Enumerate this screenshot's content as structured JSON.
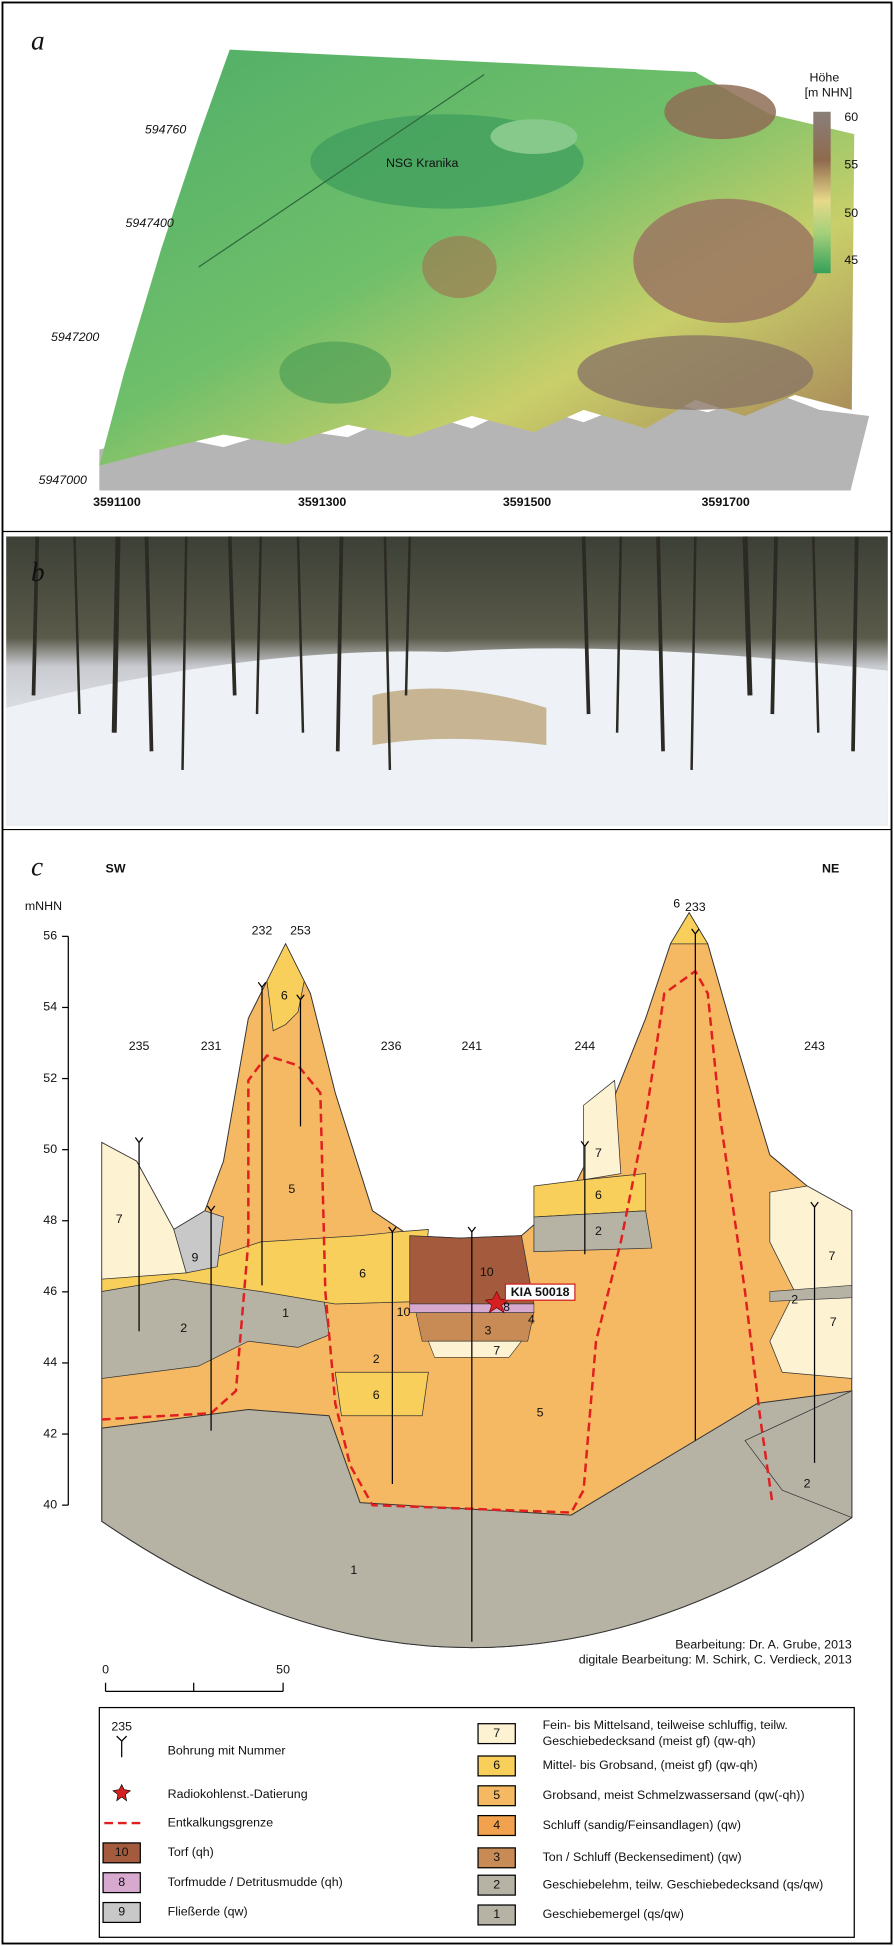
{
  "panel_a": {
    "label": "a",
    "place_label": "NSG Kranika",
    "colorbar": {
      "title": "Höhe",
      "unit": "[m NHN]",
      "ticks": [
        60,
        55,
        50,
        45
      ]
    },
    "northing_labels": [
      "594760",
      "5947400",
      "5947200",
      "5947000"
    ],
    "easting_labels": [
      "3591100",
      "3591300",
      "3591500",
      "3591700"
    ]
  },
  "panel_b": {
    "label": "b"
  },
  "panel_c": {
    "label": "c",
    "left_direction": "SW",
    "right_direction": "NE",
    "axis_unit": "mNHN",
    "y_ticks": [
      56,
      54,
      52,
      50,
      48,
      46,
      44,
      42,
      40
    ],
    "boreholes": [
      "235",
      "231",
      "232",
      "253",
      "236",
      "241",
      "244",
      "233",
      "243"
    ],
    "layer_labels": [
      "7",
      "9",
      "2",
      "1",
      "6",
      "5",
      "6",
      "2",
      "6",
      "10",
      "10",
      "8",
      "4",
      "3",
      "7",
      "5",
      "7",
      "6",
      "2",
      "6",
      "7",
      "2",
      "7",
      "2",
      "1"
    ],
    "dating_label": "KIA 50018",
    "credits": [
      "Bearbeitung: Dr. A. Grube, 2013",
      "digitale Bearbeitung: M. Schirk, C. Verdieck, 2013"
    ],
    "scale_bar": [
      "0",
      "50"
    ]
  },
  "legend": {
    "borehole_example": "235",
    "symbols": [
      "Bohrung mit Nummer",
      "Radiokohlenst.-Datierung",
      "Entkalkungsgrenze"
    ],
    "units_left": [
      {
        "number": "10",
        "label": "Torf (qh)"
      },
      {
        "number": "8",
        "label": "Torfmudde / Detritusmudde (qh)"
      },
      {
        "number": "9",
        "label": "Fließerde (qw)"
      }
    ],
    "units_right": [
      {
        "number": "7",
        "label": [
          "Fein- bis Mittelsand, teilweise schluffig, teilw.",
          "Geschiebedecksand (meist gf) (qw-qh)"
        ]
      },
      {
        "number": "6",
        "label": [
          "Mittel- bis Grobsand, (meist gf) (qw-qh)"
        ]
      },
      {
        "number": "5",
        "label": [
          "Grobsand, meist Schmelzwassersand (qw(-qh))"
        ]
      },
      {
        "number": "4",
        "label": [
          "Schluff (sandig/Feinsandlagen) (qw)"
        ]
      },
      {
        "number": "3",
        "label": [
          "Ton / Schluff (Beckensediment) (qw)"
        ]
      },
      {
        "number": "2",
        "label": [
          "Geschiebelehm, teilw. Geschiebedecksand (qs/qw)"
        ]
      },
      {
        "number": "1",
        "label": [
          "Geschiebemergel (qs/qw)"
        ]
      }
    ]
  }
}
